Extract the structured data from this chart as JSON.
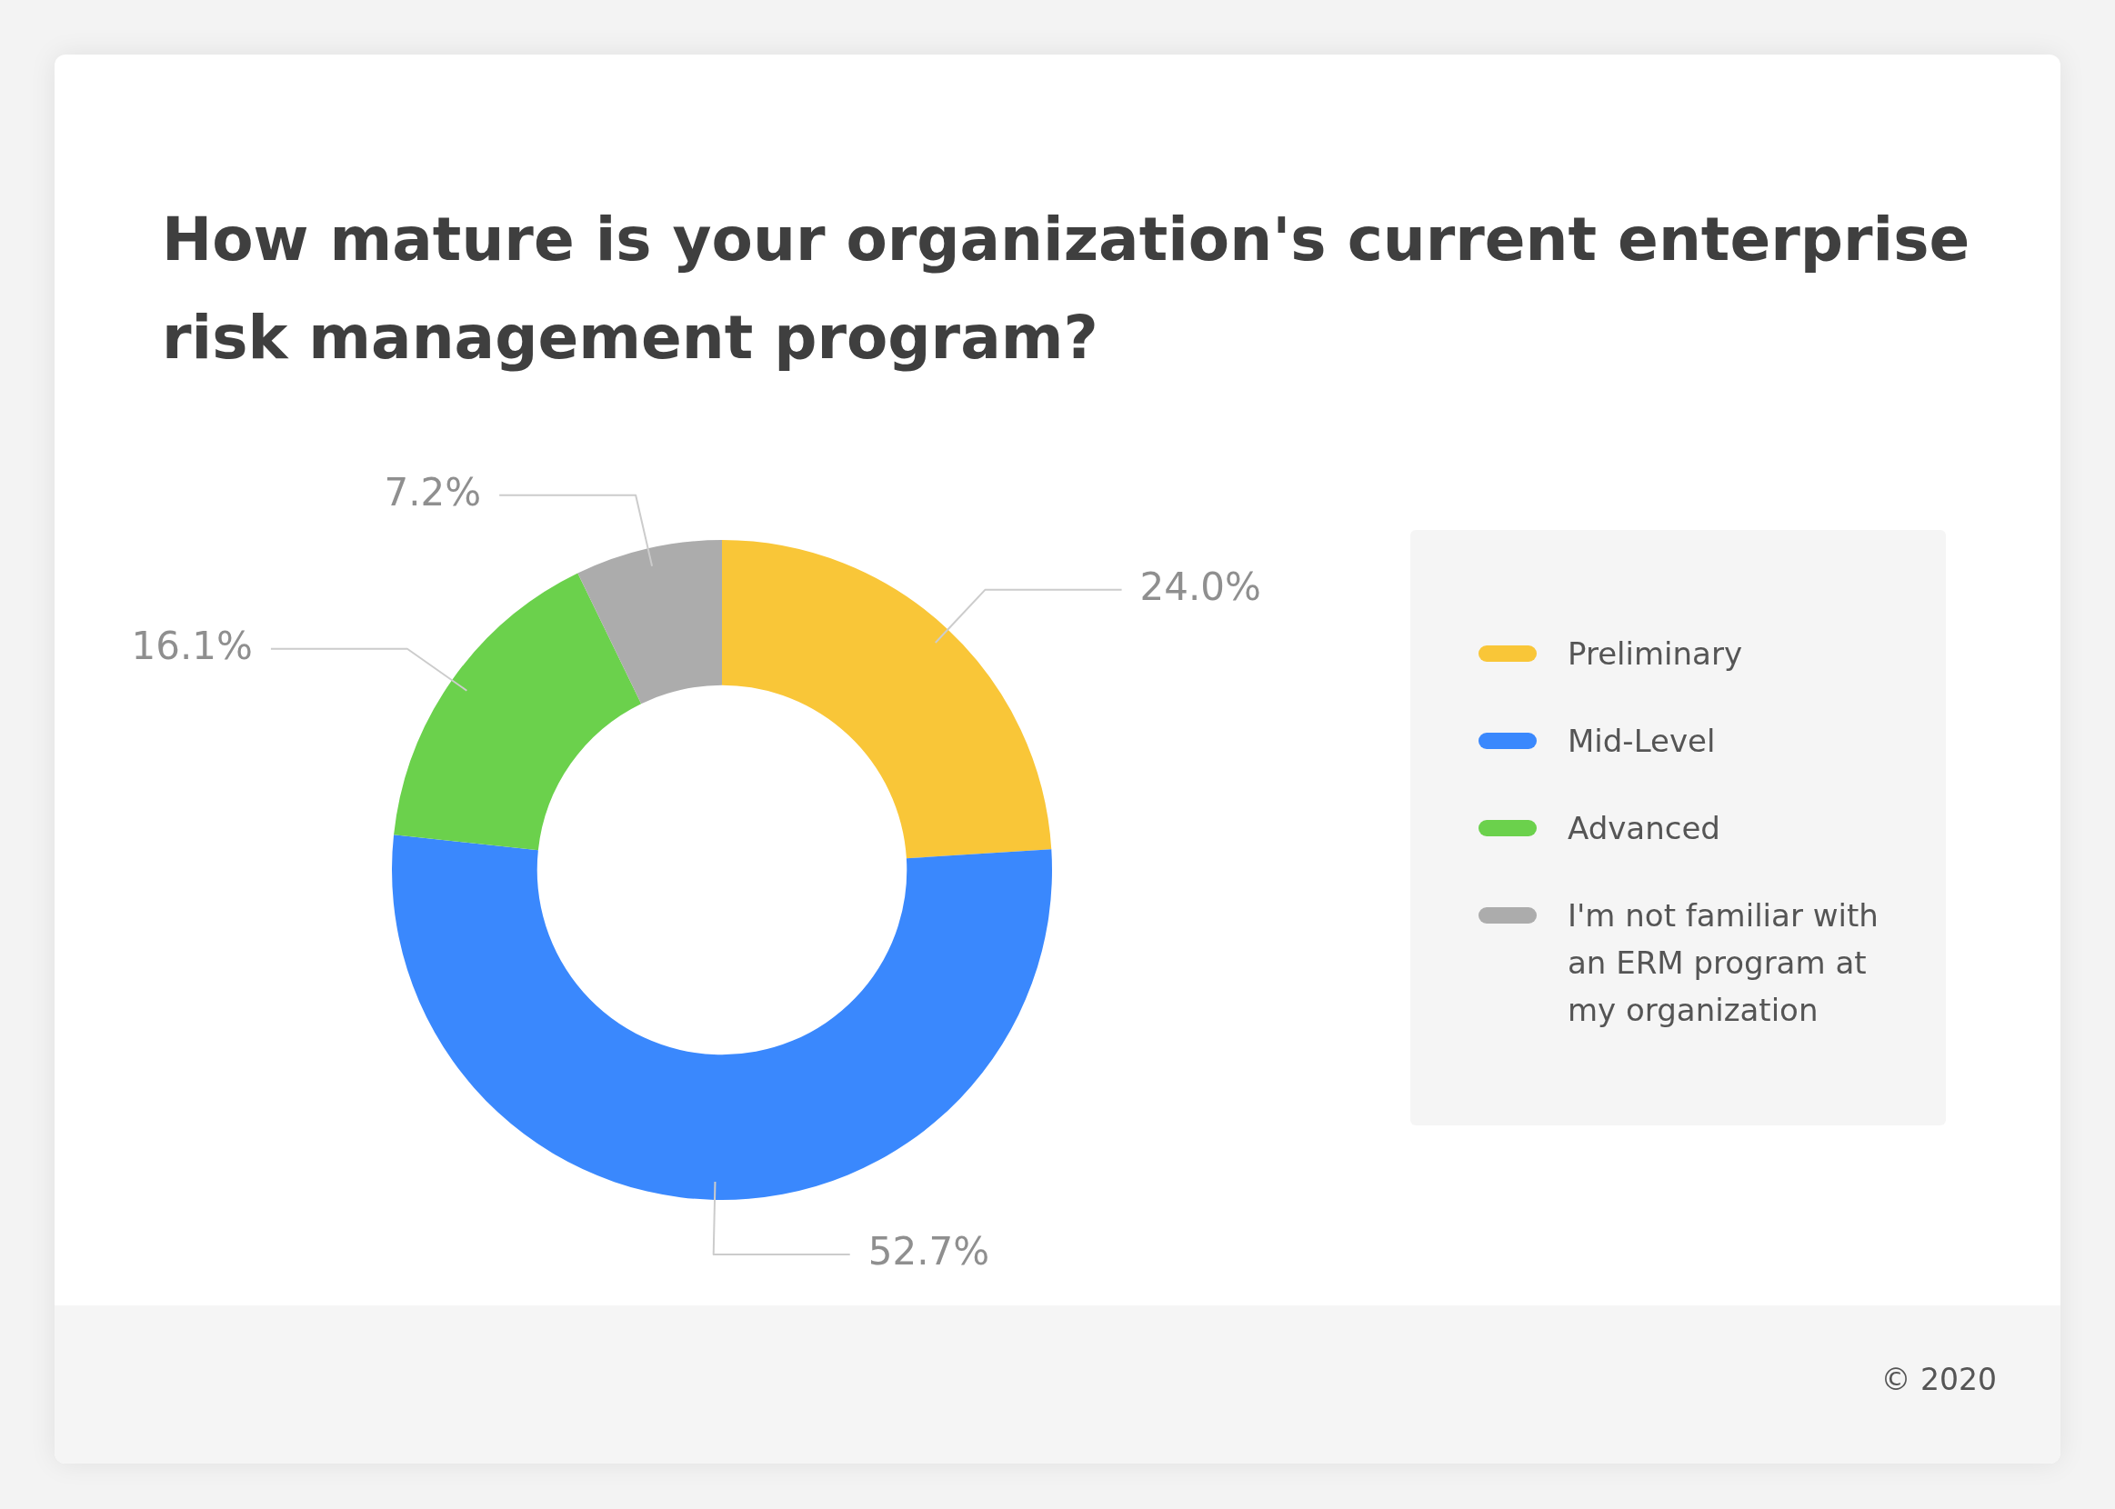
{
  "chart_data": {
    "type": "donut",
    "title": "How mature is your organization's current enterprise risk management program?",
    "categories": [
      "Preliminary",
      "Mid-Level",
      "Advanced",
      "I'm not familiar with an ERM program at my organization"
    ],
    "values": [
      24.0,
      52.7,
      16.1,
      7.2
    ],
    "colors": [
      "#f9c638",
      "#3a88fd",
      "#6bd14c",
      "#acacac"
    ],
    "value_labels": [
      "24.0%",
      "52.7%",
      "16.1%",
      "7.2%"
    ],
    "legend": "right",
    "annotations": [
      "© 2020"
    ]
  }
}
